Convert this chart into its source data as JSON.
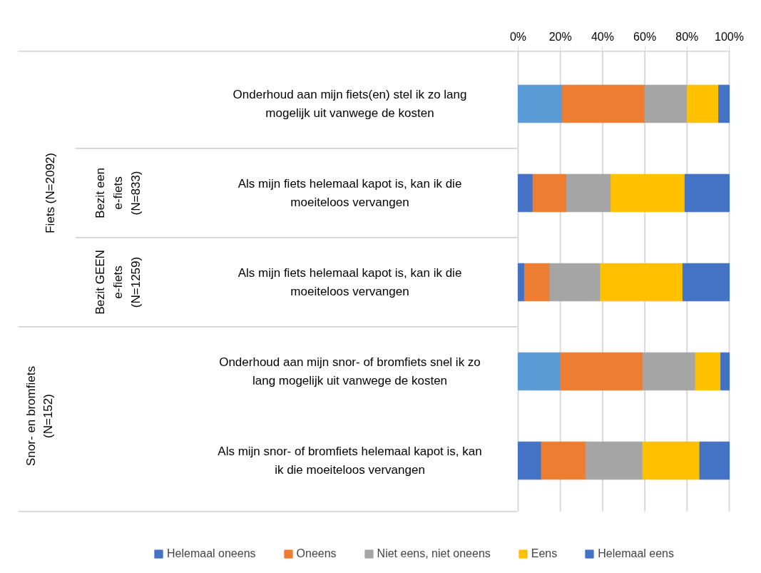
{
  "chart_data": {
    "type": "bar",
    "orientation": "horizontal",
    "stacked": true,
    "categories": [
      "Onderhoud aan mijn fiets(en) stel ik zo lang mogelijk uit vanwege de kosten",
      "Als mijn fiets helemaal kapot is, kan ik die moeiteloos vervangen",
      "Als mijn fiets helemaal kapot is, kan ik die moeiteloos vervangen",
      "Onderhoud aan mijn snor- of bromfiets snel ik zo lang mogelijk uit vanwege de kosten",
      "Als mijn snor- of bromfiets helemaal kapot is, kan ik die moeiteloos vervangen"
    ],
    "series": [
      {
        "name": "Helemaal oneens",
        "color": "#4472c4",
        "colors": [
          "#5b9bd5",
          "#4472c4",
          "#4472c4",
          "#5b9bd5",
          "#4472c4"
        ],
        "values": [
          21,
          7,
          3,
          20,
          11
        ]
      },
      {
        "name": "Oneens",
        "color": "#ed7d31",
        "values": [
          39,
          16,
          12,
          39,
          21
        ]
      },
      {
        "name": "Niet eens, niet oneens",
        "color": "#a5a5a5",
        "values": [
          20,
          21,
          24,
          25,
          27
        ]
      },
      {
        "name": "Eens",
        "color": "#ffc000",
        "values": [
          15,
          35,
          39,
          12,
          27
        ]
      },
      {
        "name": "Helemaal eens",
        "color": "#4472c4",
        "values": [
          5,
          21,
          22,
          4,
          14
        ]
      }
    ],
    "xlim": [
      0,
      100
    ],
    "xticks": [
      {
        "value": 0,
        "label": "0%"
      },
      {
        "value": 20,
        "label": "20%"
      },
      {
        "value": 40,
        "label": "40%"
      },
      {
        "value": 60,
        "label": "60%"
      },
      {
        "value": 80,
        "label": "80%"
      },
      {
        "value": 100,
        "label": "100%"
      }
    ],
    "annotations": [
      "Fiets (N=2092)",
      "Bezit een e-fiets (N=833)",
      "Bezit GEEN e-fiets (N=1259)",
      "Snor- en bromfiets (N=152)"
    ],
    "grid": "x",
    "legend": "bottom"
  }
}
